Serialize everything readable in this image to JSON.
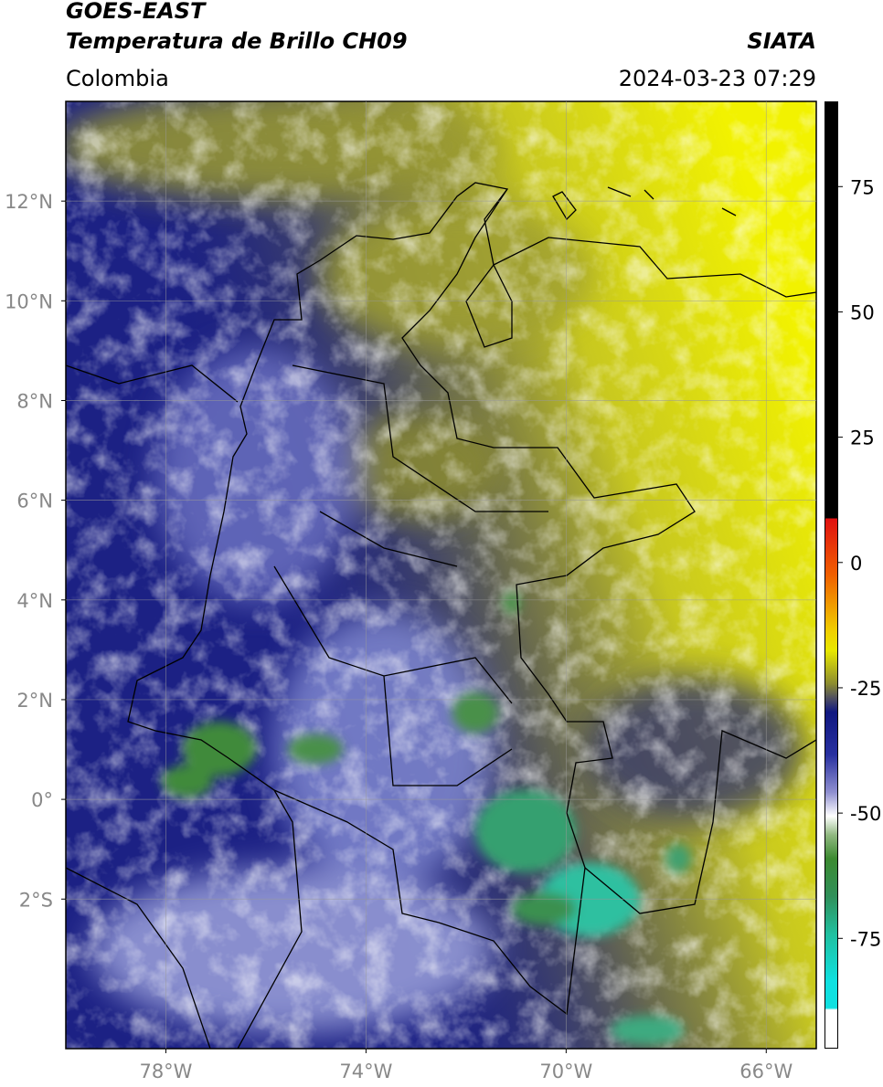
{
  "header": {
    "line1": "GOES-EAST",
    "line2": "Temperatura de Brillo CH09",
    "agency": "SIATA",
    "region": "Colombia",
    "timestamp": "2024-03-23 07:29"
  },
  "map": {
    "lon_range": [
      -80,
      -65
    ],
    "lat_range": [
      -5,
      14
    ],
    "lon_ticks": [
      {
        "value": -78,
        "label": "78°W"
      },
      {
        "value": -74,
        "label": "74°W"
      },
      {
        "value": -70,
        "label": "70°W"
      },
      {
        "value": -66,
        "label": "66°W"
      }
    ],
    "lat_ticks": [
      {
        "value": 12,
        "label": "12°N"
      },
      {
        "value": 10,
        "label": "10°N"
      },
      {
        "value": 8,
        "label": "8°N"
      },
      {
        "value": 6,
        "label": "6°N"
      },
      {
        "value": 4,
        "label": "4°N"
      },
      {
        "value": 2,
        "label": "2°N"
      },
      {
        "value": 0,
        "label": "0°"
      },
      {
        "value": -2,
        "label": "2°S"
      }
    ]
  },
  "colorbar": {
    "range": [
      -97,
      92
    ],
    "ticks": [
      75,
      50,
      25,
      0,
      -25,
      -50,
      -75
    ]
  }
}
